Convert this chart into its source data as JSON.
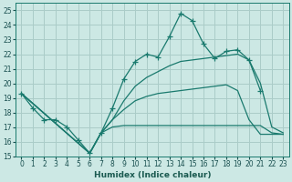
{
  "xlabel": "Humidex (Indice chaleur)",
  "bg_color": "#cce8e4",
  "line_color": "#1a7a6e",
  "grid_color": "#aaccc8",
  "xlim": [
    -0.5,
    23.5
  ],
  "ylim": [
    15,
    25.5
  ],
  "xticks": [
    0,
    1,
    2,
    3,
    4,
    5,
    6,
    7,
    8,
    9,
    10,
    11,
    12,
    13,
    14,
    15,
    16,
    17,
    18,
    19,
    20,
    21,
    22,
    23
  ],
  "yticks": [
    15,
    16,
    17,
    18,
    19,
    20,
    21,
    22,
    23,
    24,
    25
  ],
  "lines": [
    {
      "x": [
        0,
        1,
        2,
        3,
        4,
        5,
        6,
        7,
        8,
        9,
        10,
        11,
        12,
        13,
        14,
        15,
        16,
        17,
        18,
        19,
        20,
        21
      ],
      "y": [
        19.3,
        18.3,
        17.5,
        17.5,
        17.0,
        16.1,
        15.2,
        16.6,
        18.3,
        20.3,
        21.5,
        22.0,
        21.8,
        23.2,
        24.8,
        24.3,
        22.7,
        21.7,
        22.2,
        22.3,
        21.6,
        19.5
      ],
      "marker": true
    },
    {
      "x": [
        0,
        6,
        7,
        8,
        9,
        10,
        11,
        12,
        13,
        14,
        15,
        16,
        17,
        18,
        19,
        20,
        21,
        22,
        23
      ],
      "y": [
        19.3,
        15.2,
        16.6,
        17.0,
        17.1,
        17.1,
        17.1,
        17.1,
        17.1,
        17.1,
        17.1,
        17.1,
        17.1,
        17.1,
        17.1,
        17.1,
        17.1,
        16.6,
        16.5
      ],
      "marker": false
    },
    {
      "x": [
        0,
        6,
        7,
        8,
        9,
        10,
        11,
        12,
        13,
        14,
        15,
        16,
        17,
        18,
        19,
        20,
        21,
        22,
        23
      ],
      "y": [
        19.3,
        15.2,
        16.6,
        17.5,
        18.2,
        18.8,
        19.1,
        19.3,
        19.4,
        19.5,
        19.6,
        19.7,
        19.8,
        19.9,
        19.5,
        17.5,
        16.5,
        16.5,
        16.5
      ],
      "marker": false
    },
    {
      "x": [
        0,
        6,
        7,
        8,
        9,
        10,
        11,
        12,
        13,
        14,
        15,
        16,
        17,
        18,
        19,
        20,
        21,
        22,
        23
      ],
      "y": [
        19.3,
        15.2,
        16.6,
        17.5,
        18.8,
        19.8,
        20.4,
        20.8,
        21.2,
        21.5,
        21.6,
        21.7,
        21.8,
        21.9,
        22.0,
        21.6,
        20.0,
        17.0,
        16.6
      ],
      "marker": false
    }
  ]
}
